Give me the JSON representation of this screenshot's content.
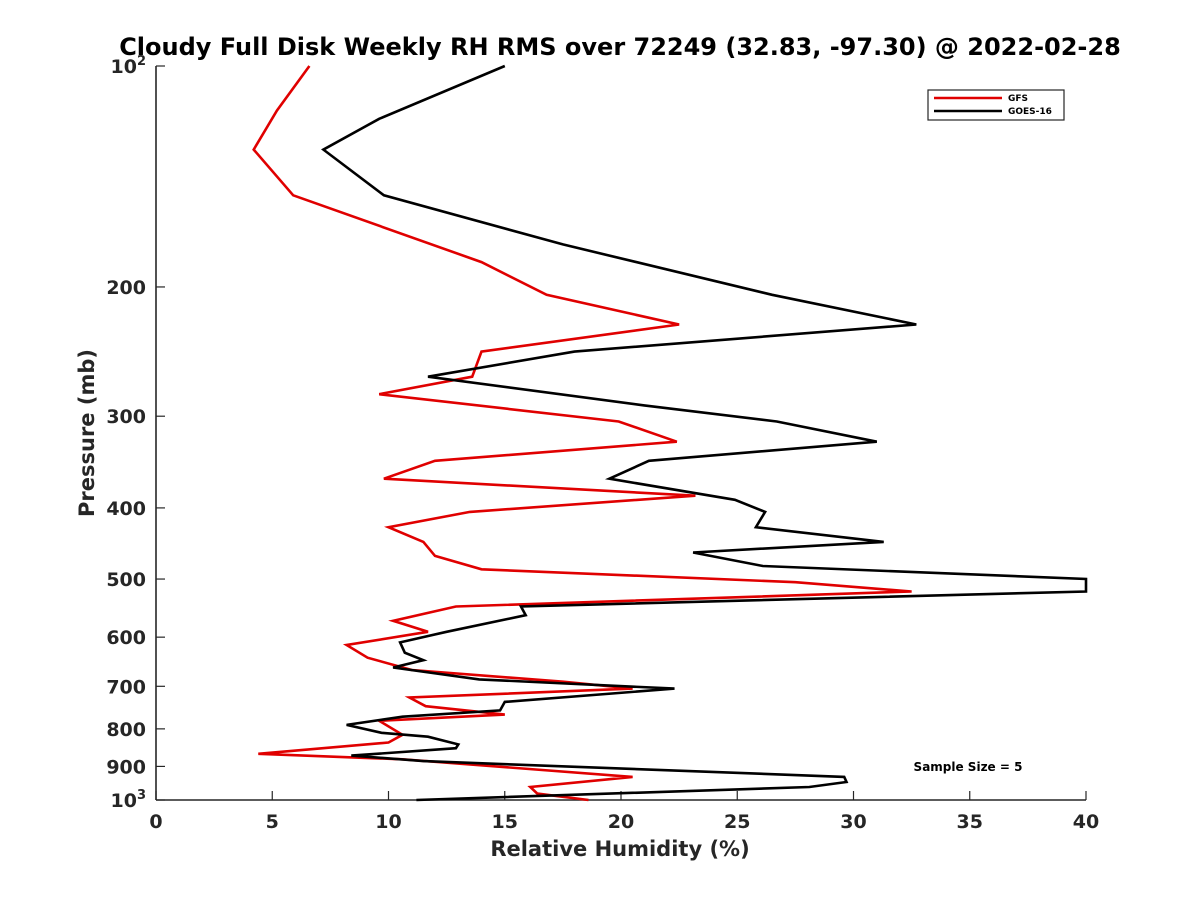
{
  "chart_data": {
    "type": "line",
    "title": "Cloudy Full Disk Weekly RH RMS over 72249 (32.83, -97.30) @ 2022-02-28",
    "xlabel": "Relative Humidity (%)",
    "ylabel": "Pressure (mb)",
    "xlim": [
      0,
      40
    ],
    "ylim": [
      100,
      1000
    ],
    "y_scale": "log",
    "y_reversed": true,
    "x_ticks": [
      "0",
      "5",
      "10",
      "15",
      "20",
      "25",
      "30",
      "35",
      "40"
    ],
    "y_tick_values": [
      100,
      200,
      300,
      400,
      500,
      600,
      700,
      800,
      900,
      1000
    ],
    "y_ticks": [
      {
        "base": "10",
        "exp": "2"
      },
      {
        "base": "200",
        "exp": ""
      },
      {
        "base": "300",
        "exp": ""
      },
      {
        "base": "400",
        "exp": ""
      },
      {
        "base": "500",
        "exp": ""
      },
      {
        "base": "600",
        "exp": ""
      },
      {
        "base": "700",
        "exp": ""
      },
      {
        "base": "800",
        "exp": ""
      },
      {
        "base": "900",
        "exp": ""
      },
      {
        "base": "10",
        "exp": "3"
      }
    ],
    "legend_position": "top-right",
    "annotation": "Sample Size = 5",
    "series": [
      {
        "name": "GFS",
        "color": "#e00000",
        "points": [
          [
            6.6,
            100
          ],
          [
            5.2,
            115
          ],
          [
            4.2,
            130
          ],
          [
            5.9,
            150
          ],
          [
            14.0,
            185
          ],
          [
            16.8,
            205
          ],
          [
            22.5,
            225
          ],
          [
            14.0,
            245
          ],
          [
            13.6,
            265
          ],
          [
            9.6,
            280
          ],
          [
            19.9,
            305
          ],
          [
            22.4,
            325
          ],
          [
            12.0,
            345
          ],
          [
            9.8,
            365
          ],
          [
            23.2,
            385
          ],
          [
            13.5,
            405
          ],
          [
            10.0,
            425
          ],
          [
            11.5,
            445
          ],
          [
            12.0,
            465
          ],
          [
            14.0,
            485
          ],
          [
            27.5,
            505
          ],
          [
            32.5,
            520
          ],
          [
            12.9,
            545
          ],
          [
            10.2,
            570
          ],
          [
            11.7,
            590
          ],
          [
            8.2,
            615
          ],
          [
            9.1,
            640
          ],
          [
            11.0,
            665
          ],
          [
            17.5,
            690
          ],
          [
            20.5,
            705
          ],
          [
            10.9,
            725
          ],
          [
            11.6,
            745
          ],
          [
            15.0,
            765
          ],
          [
            9.6,
            780
          ],
          [
            10.6,
            815
          ],
          [
            10.0,
            835
          ],
          [
            4.4,
            865
          ],
          [
            10.6,
            880
          ],
          [
            20.5,
            930
          ],
          [
            16.1,
            960
          ],
          [
            16.4,
            980
          ],
          [
            18.6,
            1000
          ]
        ]
      },
      {
        "name": "GOES-16",
        "color": "#000000",
        "points": [
          [
            15.0,
            100
          ],
          [
            9.6,
            118
          ],
          [
            7.2,
            130
          ],
          [
            9.8,
            150
          ],
          [
            17.5,
            175
          ],
          [
            26.5,
            205
          ],
          [
            32.7,
            225
          ],
          [
            18.0,
            245
          ],
          [
            11.7,
            265
          ],
          [
            21.0,
            290
          ],
          [
            26.7,
            305
          ],
          [
            31.0,
            325
          ],
          [
            21.2,
            345
          ],
          [
            19.5,
            365
          ],
          [
            24.9,
            390
          ],
          [
            26.2,
            405
          ],
          [
            25.8,
            425
          ],
          [
            31.3,
            445
          ],
          [
            23.1,
            460
          ],
          [
            26.1,
            480
          ],
          [
            40.0,
            500
          ],
          [
            40.0,
            520
          ],
          [
            15.7,
            545
          ],
          [
            15.9,
            560
          ],
          [
            12.5,
            590
          ],
          [
            10.5,
            610
          ],
          [
            10.7,
            630
          ],
          [
            11.5,
            645
          ],
          [
            10.2,
            660
          ],
          [
            13.9,
            685
          ],
          [
            22.3,
            705
          ],
          [
            15.0,
            735
          ],
          [
            14.8,
            755
          ],
          [
            10.6,
            770
          ],
          [
            8.2,
            790
          ],
          [
            9.7,
            810
          ],
          [
            11.7,
            820
          ],
          [
            13.0,
            840
          ],
          [
            12.9,
            850
          ],
          [
            8.4,
            870
          ],
          [
            11.5,
            885
          ],
          [
            29.6,
            930
          ],
          [
            29.7,
            945
          ],
          [
            28.1,
            960
          ],
          [
            11.2,
            1000
          ]
        ]
      }
    ]
  }
}
